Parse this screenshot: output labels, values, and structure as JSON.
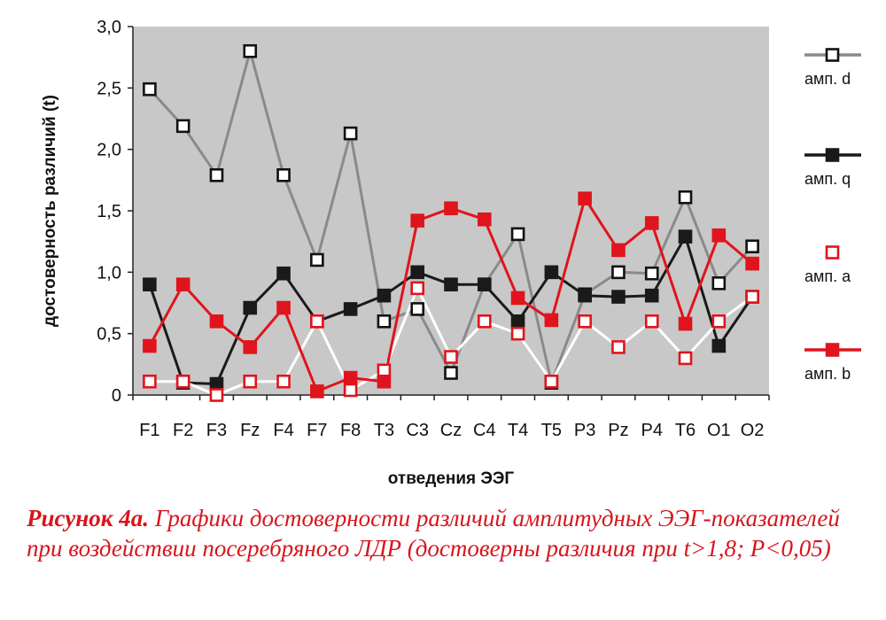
{
  "chart_data": {
    "type": "line",
    "xlabel": "отведения ЭЭГ",
    "ylabel": "достоверность различий (t)",
    "categories": [
      "F1",
      "F2",
      "F3",
      "Fz",
      "F4",
      "F7",
      "F8",
      "T3",
      "C3",
      "Cz",
      "C4",
      "T4",
      "T5",
      "P3",
      "Pz",
      "P4",
      "T6",
      "O1",
      "O2"
    ],
    "ylim": [
      0,
      3.0
    ],
    "yticks": [
      "0",
      "0,5",
      "1,0",
      "1,5",
      "2,0",
      "2,5",
      "3,0"
    ],
    "ytick_values": [
      0,
      0.5,
      1.0,
      1.5,
      2.0,
      2.5,
      3.0
    ],
    "grid": false,
    "plot_background": "#c8c8c8",
    "legend_position": "right",
    "series": [
      {
        "name": "амп. d",
        "line_color": "#8a8a8a",
        "marker_fill": "#ffffff",
        "marker_stroke": "#111111",
        "values": [
          2.49,
          2.19,
          1.79,
          2.8,
          1.79,
          1.1,
          2.13,
          0.6,
          0.7,
          0.18,
          0.9,
          1.31,
          0.1,
          0.82,
          1.0,
          0.99,
          1.61,
          0.91,
          1.21
        ]
      },
      {
        "name": "амп. q",
        "line_color": "#1a1a1a",
        "marker_fill": "#1a1a1a",
        "marker_stroke": "#1a1a1a",
        "values": [
          0.9,
          0.1,
          0.09,
          0.71,
          0.99,
          0.6,
          0.7,
          0.81,
          1.0,
          0.9,
          0.9,
          0.6,
          1.0,
          0.81,
          0.8,
          0.81,
          1.29,
          0.4,
          0.8
        ]
      },
      {
        "name": "амп. a",
        "line_color": "#ffffff",
        "marker_fill": "#ffffff",
        "marker_stroke": "#e0141c",
        "values": [
          0.11,
          0.11,
          0.0,
          0.11,
          0.11,
          0.6,
          0.04,
          0.2,
          0.87,
          0.31,
          0.6,
          0.5,
          0.11,
          0.6,
          0.39,
          0.6,
          0.3,
          0.6,
          0.8
        ]
      },
      {
        "name": "амп. b",
        "line_color": "#e0141c",
        "marker_fill": "#e0141c",
        "marker_stroke": "#e0141c",
        "values": [
          0.4,
          0.9,
          0.6,
          0.39,
          0.71,
          0.03,
          0.14,
          0.11,
          1.42,
          1.52,
          1.43,
          0.79,
          0.61,
          1.6,
          1.18,
          1.4,
          0.58,
          1.3,
          1.07
        ]
      }
    ]
  },
  "caption": {
    "lead": "Рисунок 4а.",
    "text": " Графики достоверности различий амплитудных ЭЭГ-показателей при воздействии посеребряного ЛДР (достоверны различия при t>1,8; P<0,05)"
  }
}
